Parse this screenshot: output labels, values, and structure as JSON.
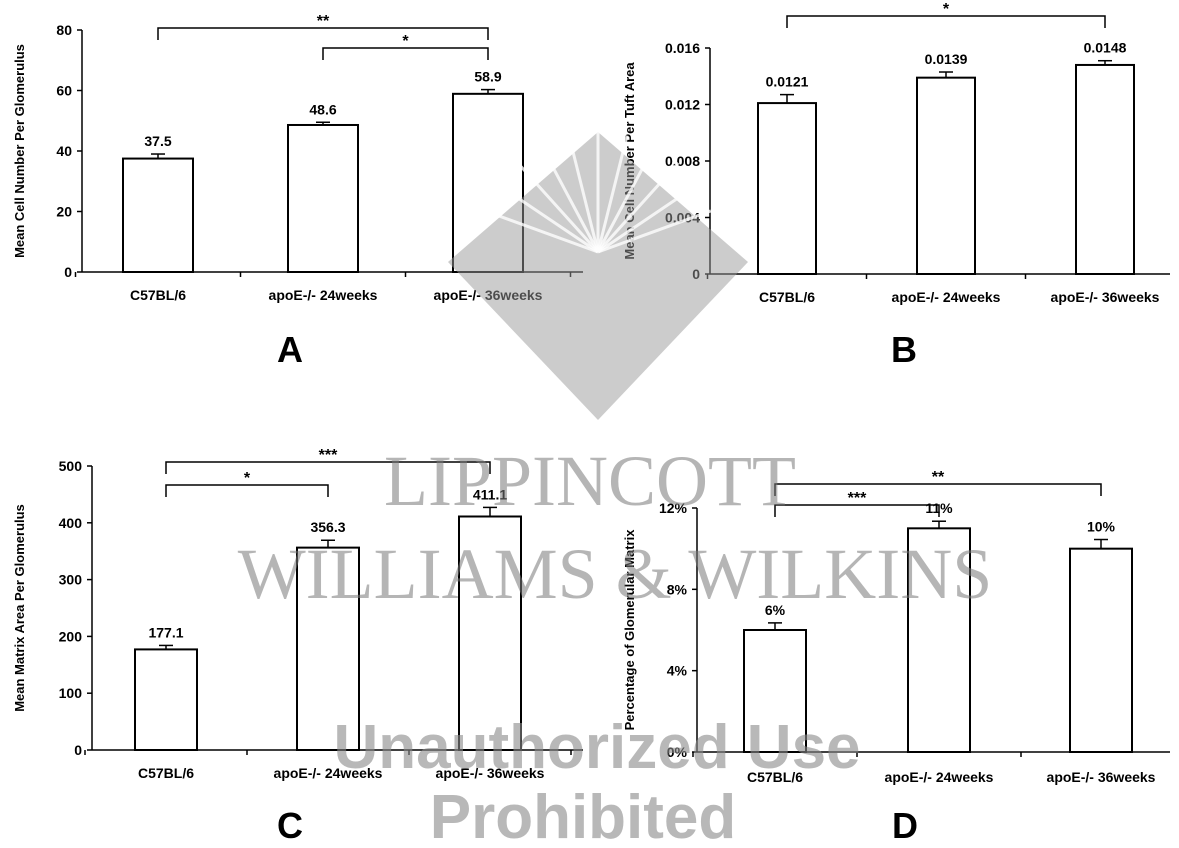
{
  "watermark": {
    "line1": "LIPPINCOTT",
    "line2": "WILLIAMS & WILKINS",
    "line3": "Unauthorized Use",
    "line4": "Prohibited"
  },
  "chart_data": [
    {
      "type": "bar",
      "panel": "A",
      "ylabel": "Mean Cell Number Per Glomerulus",
      "categories": [
        "C57BL/6",
        "apoE-/- 24weeks",
        "apoE-/- 36weeks"
      ],
      "values": [
        37.5,
        48.6,
        58.9
      ],
      "errors": [
        1.5,
        0.9,
        1.4
      ],
      "value_labels": [
        "37.5",
        "48.6",
        "58.9"
      ],
      "ylim": [
        0,
        80
      ],
      "yticks": [
        0,
        20,
        40,
        60,
        80
      ],
      "ytick_labels": [
        "0",
        "20",
        "40",
        "60",
        "80"
      ],
      "significance": [
        {
          "from": 0,
          "to": 2,
          "label": "**"
        },
        {
          "from": 1,
          "to": 2,
          "label": "*"
        }
      ]
    },
    {
      "type": "bar",
      "panel": "B",
      "ylabel": "Mean Cell Number Per Tuft Area",
      "categories": [
        "C57BL/6",
        "apoE-/- 24weeks",
        "apoE-/- 36weeks"
      ],
      "values": [
        0.0121,
        0.0139,
        0.0148
      ],
      "errors": [
        0.0006,
        0.0004,
        0.0003
      ],
      "value_labels": [
        "0.0121",
        "0.0139",
        "0.0148"
      ],
      "ylim": [
        0,
        0.016
      ],
      "yticks": [
        0,
        0.004,
        0.008,
        0.012,
        0.016
      ],
      "ytick_labels": [
        "0",
        "0.004",
        "0.008",
        "0.012",
        "0.016"
      ],
      "significance": [
        {
          "from": 0,
          "to": 2,
          "label": "*"
        }
      ]
    },
    {
      "type": "bar",
      "panel": "C",
      "ylabel": "Mean Matrix Area Per Glomerulus",
      "categories": [
        "C57BL/6",
        "apoE-/- 24weeks",
        "apoE-/- 36weeks"
      ],
      "values": [
        177.1,
        356.3,
        411.1
      ],
      "errors": [
        7,
        13,
        16
      ],
      "value_labels": [
        "177.1",
        "356.3",
        "411.1"
      ],
      "ylim": [
        0,
        500
      ],
      "yticks": [
        0,
        100,
        200,
        300,
        400,
        500
      ],
      "ytick_labels": [
        "0",
        "100",
        "200",
        "300",
        "400",
        "500"
      ],
      "significance": [
        {
          "from": 0,
          "to": 2,
          "label": "***"
        },
        {
          "from": 0,
          "to": 1,
          "label": "*"
        }
      ]
    },
    {
      "type": "bar",
      "panel": "D",
      "ylabel": "Percentage of Glomerular Matrix",
      "categories": [
        "C57BL/6",
        "apoE-/- 24weeks",
        "apoE-/- 36weeks"
      ],
      "values": [
        6,
        11,
        10
      ],
      "errors": [
        0.35,
        0.35,
        0.45
      ],
      "value_labels": [
        "6%",
        "11%",
        "10%"
      ],
      "ylim": [
        0,
        12
      ],
      "yticks": [
        0,
        4,
        8,
        12
      ],
      "ytick_labels": [
        "0%",
        "4%",
        "8%",
        "12%"
      ],
      "significance": [
        {
          "from": 0,
          "to": 2,
          "label": "**"
        },
        {
          "from": 0,
          "to": 1,
          "label": "***"
        }
      ]
    }
  ]
}
